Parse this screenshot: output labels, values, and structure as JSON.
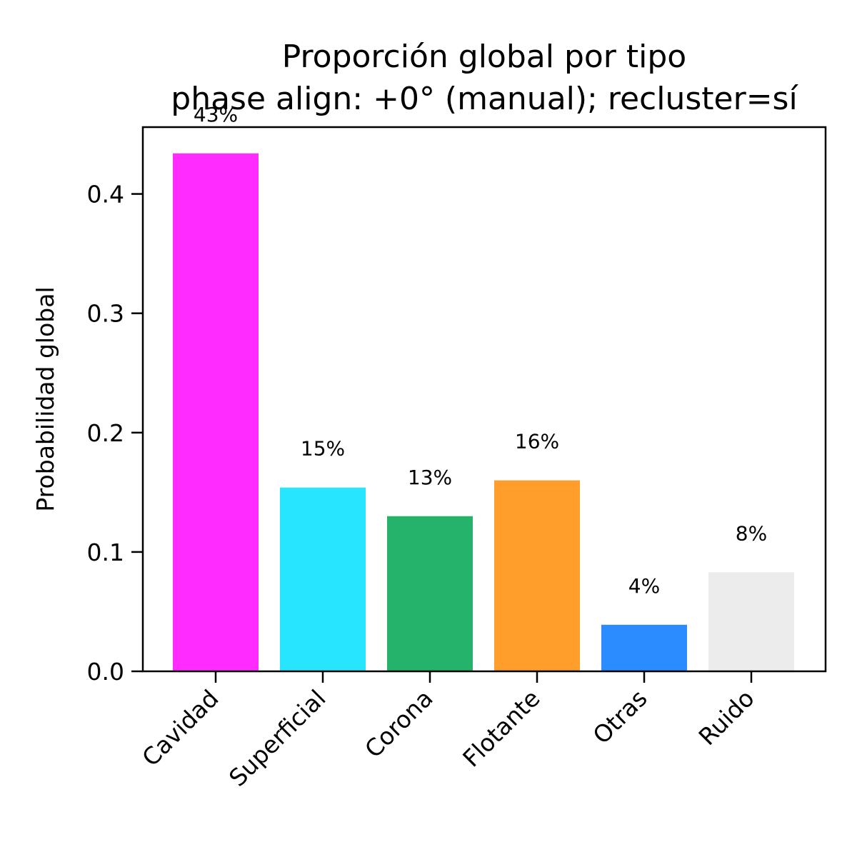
{
  "chart_data": {
    "type": "bar",
    "title": "Proporción global por tipo",
    "subtitle": "phase align: +0° (manual); recluster=sí",
    "xlabel": "",
    "ylabel": "Probabilidad global",
    "categories": [
      "Cavidad",
      "Superficial",
      "Corona",
      "Flotante",
      "Otras",
      "Ruido"
    ],
    "values": [
      0.434,
      0.154,
      0.13,
      0.16,
      0.039,
      0.083
    ],
    "data_labels": [
      "43%",
      "15%",
      "13%",
      "16%",
      "4%",
      "8%"
    ],
    "colors": [
      "#ff2bff",
      "#27e5ff",
      "#25b36b",
      "#ff9e2b",
      "#2a8cff",
      "#ececec"
    ],
    "ylim": [
      0,
      0.456
    ],
    "yticks": [
      0.0,
      0.1,
      0.2,
      0.3,
      0.4
    ],
    "ytick_labels": [
      "0.0",
      "0.1",
      "0.2",
      "0.3",
      "0.4"
    ],
    "grid": false,
    "legend": "none"
  }
}
